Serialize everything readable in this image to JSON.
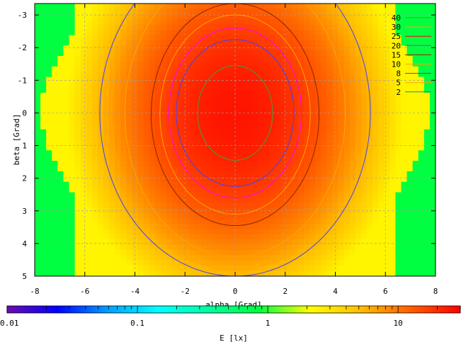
{
  "chart_data": {
    "type": "heatmap",
    "title": "",
    "xlabel": "alpha [Grad]",
    "ylabel": "beta [Grad]",
    "xlim": [
      -8,
      8
    ],
    "ylim": [
      -3.35,
      5
    ],
    "y_inverted": true,
    "x_ticks": [
      "-8",
      "-6",
      "-4",
      "-2",
      "0",
      "2",
      "4",
      "6",
      "8"
    ],
    "x_tick_values": [
      -8,
      -6,
      -4,
      -2,
      0,
      2,
      4,
      6,
      8
    ],
    "y_ticks": [
      "-3",
      "-2",
      "-1",
      "0",
      "1",
      "2",
      "3",
      "4",
      "5"
    ],
    "y_tick_values": [
      -3,
      -2,
      -1,
      0,
      1,
      2,
      3,
      4,
      5
    ],
    "grid": true,
    "field": {
      "peak_value": 25,
      "peak_location": [
        0,
        0
      ],
      "description_scale": "log",
      "sigma_alpha": 4.5,
      "sigma_beta": 4.1,
      "edge_shrink": 0.38
    },
    "contour_levels": [
      {
        "level": 40,
        "label": "40",
        "color": "#20b020"
      },
      {
        "level": 30,
        "label": "30",
        "color": "#ffa500"
      },
      {
        "level": 25,
        "label": "25",
        "color": "#ff0000"
      },
      {
        "level": 20,
        "label": "20",
        "color": "#ff00ff"
      },
      {
        "level": 15,
        "label": "15",
        "color": "#8b2500"
      },
      {
        "level": 10,
        "label": "10",
        "color": "#ffa500"
      },
      {
        "level": 8,
        "label": "8",
        "color": "#4040ff"
      },
      {
        "level": 5,
        "label": "5",
        "color": "#ffa500"
      },
      {
        "level": 2,
        "label": "2",
        "color": "#2e8b57"
      }
    ],
    "contours_drawn": [
      {
        "level": 20,
        "a": 1.5,
        "b": 1.45,
        "cy": 0,
        "color": "#40a040"
      },
      {
        "level": 15,
        "a": 2.35,
        "b": 2.25,
        "cy": 0,
        "color": "#4040ff"
      },
      {
        "level": 12,
        "a": 2.65,
        "b": 2.6,
        "cy": 0,
        "color": "#ff00ff"
      },
      {
        "level": 10,
        "a": 3.0,
        "b": 3.05,
        "cy": 0.05,
        "color": "#ffa500"
      },
      {
        "level": 8,
        "a": 5.4,
        "b": 5.0,
        "cy": 0,
        "color": "#4040ff"
      },
      {
        "level": 5,
        "a": 4.4,
        "b": 4.4,
        "cy": 0,
        "color": "#ffa500"
      },
      {
        "level": 6,
        "a": 3.35,
        "b": 3.4,
        "cy": 0.05,
        "color": "#8b2500"
      },
      {
        "level": 4,
        "a": 4.95,
        "b": 4.8,
        "cy": 0,
        "color": "#ffa500"
      }
    ],
    "colorbar": {
      "label": "E [lx]",
      "scale": "log",
      "range": [
        0.01,
        30
      ],
      "tick_labels": [
        "0.01",
        "0.1",
        "1",
        "10"
      ],
      "tick_values": [
        0.01,
        0.1,
        1,
        10
      ],
      "palette": [
        "#6a0dad",
        "#0000ff",
        "#00a0ff",
        "#00ffff",
        "#00ffa0",
        "#00ff40",
        "#ffff00",
        "#ffc000",
        "#ff6000",
        "#ff0000"
      ]
    }
  }
}
